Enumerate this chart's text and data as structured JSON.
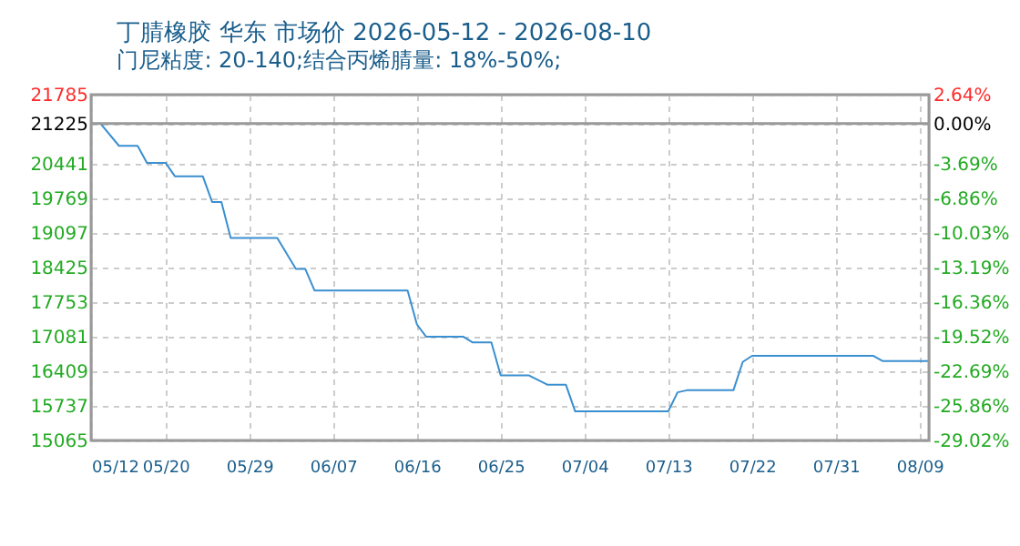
{
  "chart_data": {
    "type": "line",
    "title": "丁腈橡胶 华东 市场价 2026-05-12 - 2026-08-10",
    "subtitle": "门尼粘度: 20-140;结合丙烯腈量: 18%-50%;",
    "x": [
      "2026-05-12",
      "2026-05-13",
      "2026-05-15",
      "2026-05-17",
      "2026-05-18",
      "2026-05-20",
      "2026-05-21",
      "2026-05-24",
      "2026-05-25",
      "2026-05-26",
      "2026-05-27",
      "2026-06-01",
      "2026-06-03",
      "2026-06-04",
      "2026-06-05",
      "2026-06-15",
      "2026-06-16",
      "2026-06-17",
      "2026-06-21",
      "2026-06-22",
      "2026-06-24",
      "2026-06-25",
      "2026-06-28",
      "2026-06-30",
      "2026-07-02",
      "2026-07-03",
      "2026-07-13",
      "2026-07-14",
      "2026-07-15",
      "2026-07-20",
      "2026-07-21",
      "2026-07-22",
      "2026-08-04",
      "2026-08-05",
      "2026-08-10"
    ],
    "series": [
      {
        "color": "#3a8fd0",
        "values": [
          21225,
          21225,
          20790,
          20790,
          20460,
          20460,
          20200,
          20200,
          19700,
          19700,
          19000,
          19000,
          18400,
          18400,
          17980,
          17980,
          17320,
          17080,
          17080,
          16970,
          16970,
          16330,
          16330,
          16150,
          16150,
          15630,
          15630,
          16000,
          16040,
          16040,
          16590,
          16710,
          16710,
          16610,
          16610
        ]
      }
    ],
    "xlim": [
      "2026-05-12",
      "2026-08-10"
    ],
    "xticks": [
      {
        "value": "2026-05-12",
        "label": "05/12"
      },
      {
        "value": "2026-05-20",
        "label": "05/20"
      },
      {
        "value": "2026-05-29",
        "label": "05/29"
      },
      {
        "value": "2026-06-07",
        "label": "06/07"
      },
      {
        "value": "2026-06-16",
        "label": "06/16"
      },
      {
        "value": "2026-06-25",
        "label": "06/25"
      },
      {
        "value": "2026-07-04",
        "label": "07/04"
      },
      {
        "value": "2026-07-13",
        "label": "07/13"
      },
      {
        "value": "2026-07-22",
        "label": "07/22"
      },
      {
        "value": "2026-07-31",
        "label": "07/31"
      },
      {
        "value": "2026-08-09",
        "label": "08/09"
      }
    ],
    "ylim": [
      15065,
      21785
    ],
    "yticks": [
      15065,
      15737,
      16409,
      17081,
      17753,
      18425,
      19097,
      19769,
      20441,
      21225,
      21785
    ],
    "y2lim": [
      -29.02,
      2.64
    ],
    "y2ticks": [
      {
        "value": -29.02,
        "label": "-29.02%"
      },
      {
        "value": -25.86,
        "label": "-25.86%"
      },
      {
        "value": -22.69,
        "label": "-22.69%"
      },
      {
        "value": -19.52,
        "label": "-19.52%"
      },
      {
        "value": -16.36,
        "label": "-16.36%"
      },
      {
        "value": -13.19,
        "label": "-13.19%"
      },
      {
        "value": -10.03,
        "label": "-10.03%"
      },
      {
        "value": -6.86,
        "label": "-6.86%"
      },
      {
        "value": -3.69,
        "label": "-3.69%"
      },
      {
        "value": 0,
        "label": "0.00%"
      },
      {
        "value": 2.64,
        "label": "2.64%"
      }
    ],
    "ref_lines": [
      {
        "axis": "y",
        "value": 21225,
        "color": "#999999"
      }
    ],
    "grid": true,
    "marker": "none",
    "line_style": "solid"
  }
}
